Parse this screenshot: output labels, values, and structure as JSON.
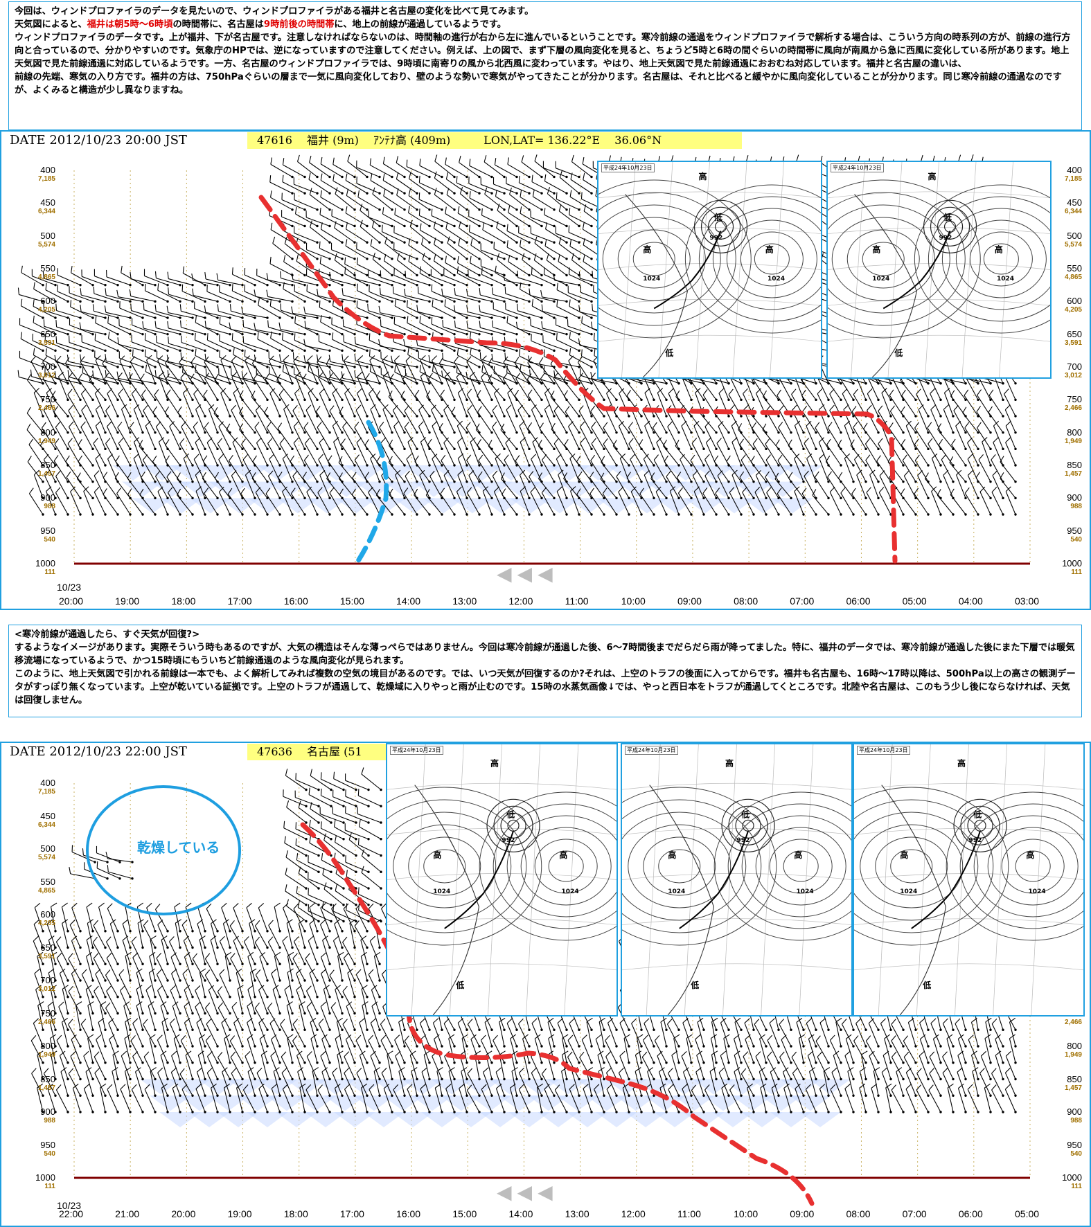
{
  "intro": {
    "line1": "今回は、ウィンドプロファイラのデータを見たいので、ウィンドプロファイラがある福井と名古屋の変化を比べて見てみます。",
    "line2_a": "天気図によると、",
    "line2_red1": "福井は朝5時～6時頃",
    "line2_b": "の時間帯に、名古屋は",
    "line2_red2": "9時前後の時間帯",
    "line2_c": "に、地上の前線が通過しているようです。",
    "line3": "ウィンドプロファイラのデータです。上が福井、下が名古屋です。注意しなければならないのは、時間軸の進行が右から左に進んでいるということです。寒冷前線の通過をウィンドプロファイラで解析する場合は、こういう方向の時系列の方が、前線の進行方向と合っているので、分かりやすいのです。気象庁のHPでは、逆になっていますので注意してください。例えば、上の図で、まず下層の風向変化を見ると、ちょうど5時と6時の間ぐらいの時間帯に風向が南風から急に西風に変化している所があります。地上天気図で見た前線通過に対応しているようです。一方、名古屋のウィンドプロファイラでは、9時頃に南寄りの風から北西風に変わっています。やはり、地上天気図で見た前線通過におおむね対応しています。福井と名古屋の違いは、",
    "line4": "前線の先端、寒気の入り方です。福井の方は、750hPaぐらいの層まで一気に風向変化しており、壁のような勢いで寒気がやってきたことが分かります。名古屋は、それと比べると緩やかに風向変化していることが分かります。同じ寒冷前線の通過なのですが、よくみると構造が少し異なりますね。"
  },
  "middle": {
    "heading": "<寒冷前線が通過したら、すぐ天気が回復?>",
    "body1": "するようなイメージがあります。実際そういう時もあるのですが、大気の構造はそんな薄っぺらではありません。今回は寒冷前線が通過した後、6～7時間後までだらだら雨が降ってました。特に、福井のデータでは、寒冷前線が通過した後にまた下層では暖気移流場になっているようで、かつ15時頃にもういちど前線通過のような風向変化が見られます。",
    "body2": "このように、地上天気図で引かれる前線は一本でも、よく解析してみれば複数の空気の境目があるのです。では、いつ天気が回復するのか?それは、上空のトラフの後面に入ってからです。福井も名古屋も、16時～17時以降は、500hPa以上の高さの観測データがすっぽり無くなっています。上空が乾いている証拠です。上空のトラフが通過して、乾燥域に入りやっと雨が止むのです。15時の水蒸気画像↓では、やっと西日本をトラフが通過してくところです。北陸や名古屋は、このもう少し後にならなければ、天気は回復しません。"
  },
  "fukui": {
    "date": "DATE 2012/10/23 20:00 JST",
    "station": "47616　 福井 (9m)　 ｱﾝﾃﾅ高 (409m)　　　LON,LAT= 136.22°E　 36.06°N",
    "date_label": "10/23",
    "times": [
      "20:00",
      "19:00",
      "18:00",
      "17:00",
      "16:00",
      "15:00",
      "14:00",
      "13:00",
      "12:00",
      "11:00",
      "10:00",
      "09:00",
      "08:00",
      "07:00",
      "06:00",
      "05:00",
      "04:00",
      "03:00"
    ]
  },
  "nagoya": {
    "date": "DATE 2012/10/23 22:00 JST",
    "station": "47636　 名古屋 (51",
    "date_label": "10/23",
    "times": [
      "22:00",
      "21:00",
      "20:00",
      "19:00",
      "18:00",
      "17:00",
      "16:00",
      "15:00",
      "14:00",
      "13:00",
      "12:00",
      "11:00",
      "10:00",
      "09:00",
      "08:00",
      "07:00",
      "06:00",
      "05:00"
    ],
    "dry_label": "乾燥している"
  },
  "levels": [
    {
      "p": "400",
      "h": "7,185"
    },
    {
      "p": "450",
      "h": "6,344"
    },
    {
      "p": "500",
      "h": "5,574"
    },
    {
      "p": "550",
      "h": "4,865"
    },
    {
      "p": "600",
      "h": "4,205"
    },
    {
      "p": "650",
      "h": "3,591"
    },
    {
      "p": "700",
      "h": "3,012"
    },
    {
      "p": "750",
      "h": "2,466"
    },
    {
      "p": "800",
      "h": "1,949"
    },
    {
      "p": "850",
      "h": "1,457"
    },
    {
      "p": "900",
      "h": "988"
    },
    {
      "p": "950",
      "h": "540"
    },
    {
      "p": "1000",
      "h": "111"
    }
  ],
  "inset_stamp": "平成24年10月23日",
  "map_labels": {
    "low": "低",
    "high": "高",
    "p1024": "1024",
    "p992": "992"
  },
  "colors": {
    "frame": "#20a0e0",
    "front": "#e83030",
    "blue_front": "#20a8e8",
    "axis": "#800000",
    "grid": "#c8b060",
    "shade": "#c8d8ff"
  }
}
